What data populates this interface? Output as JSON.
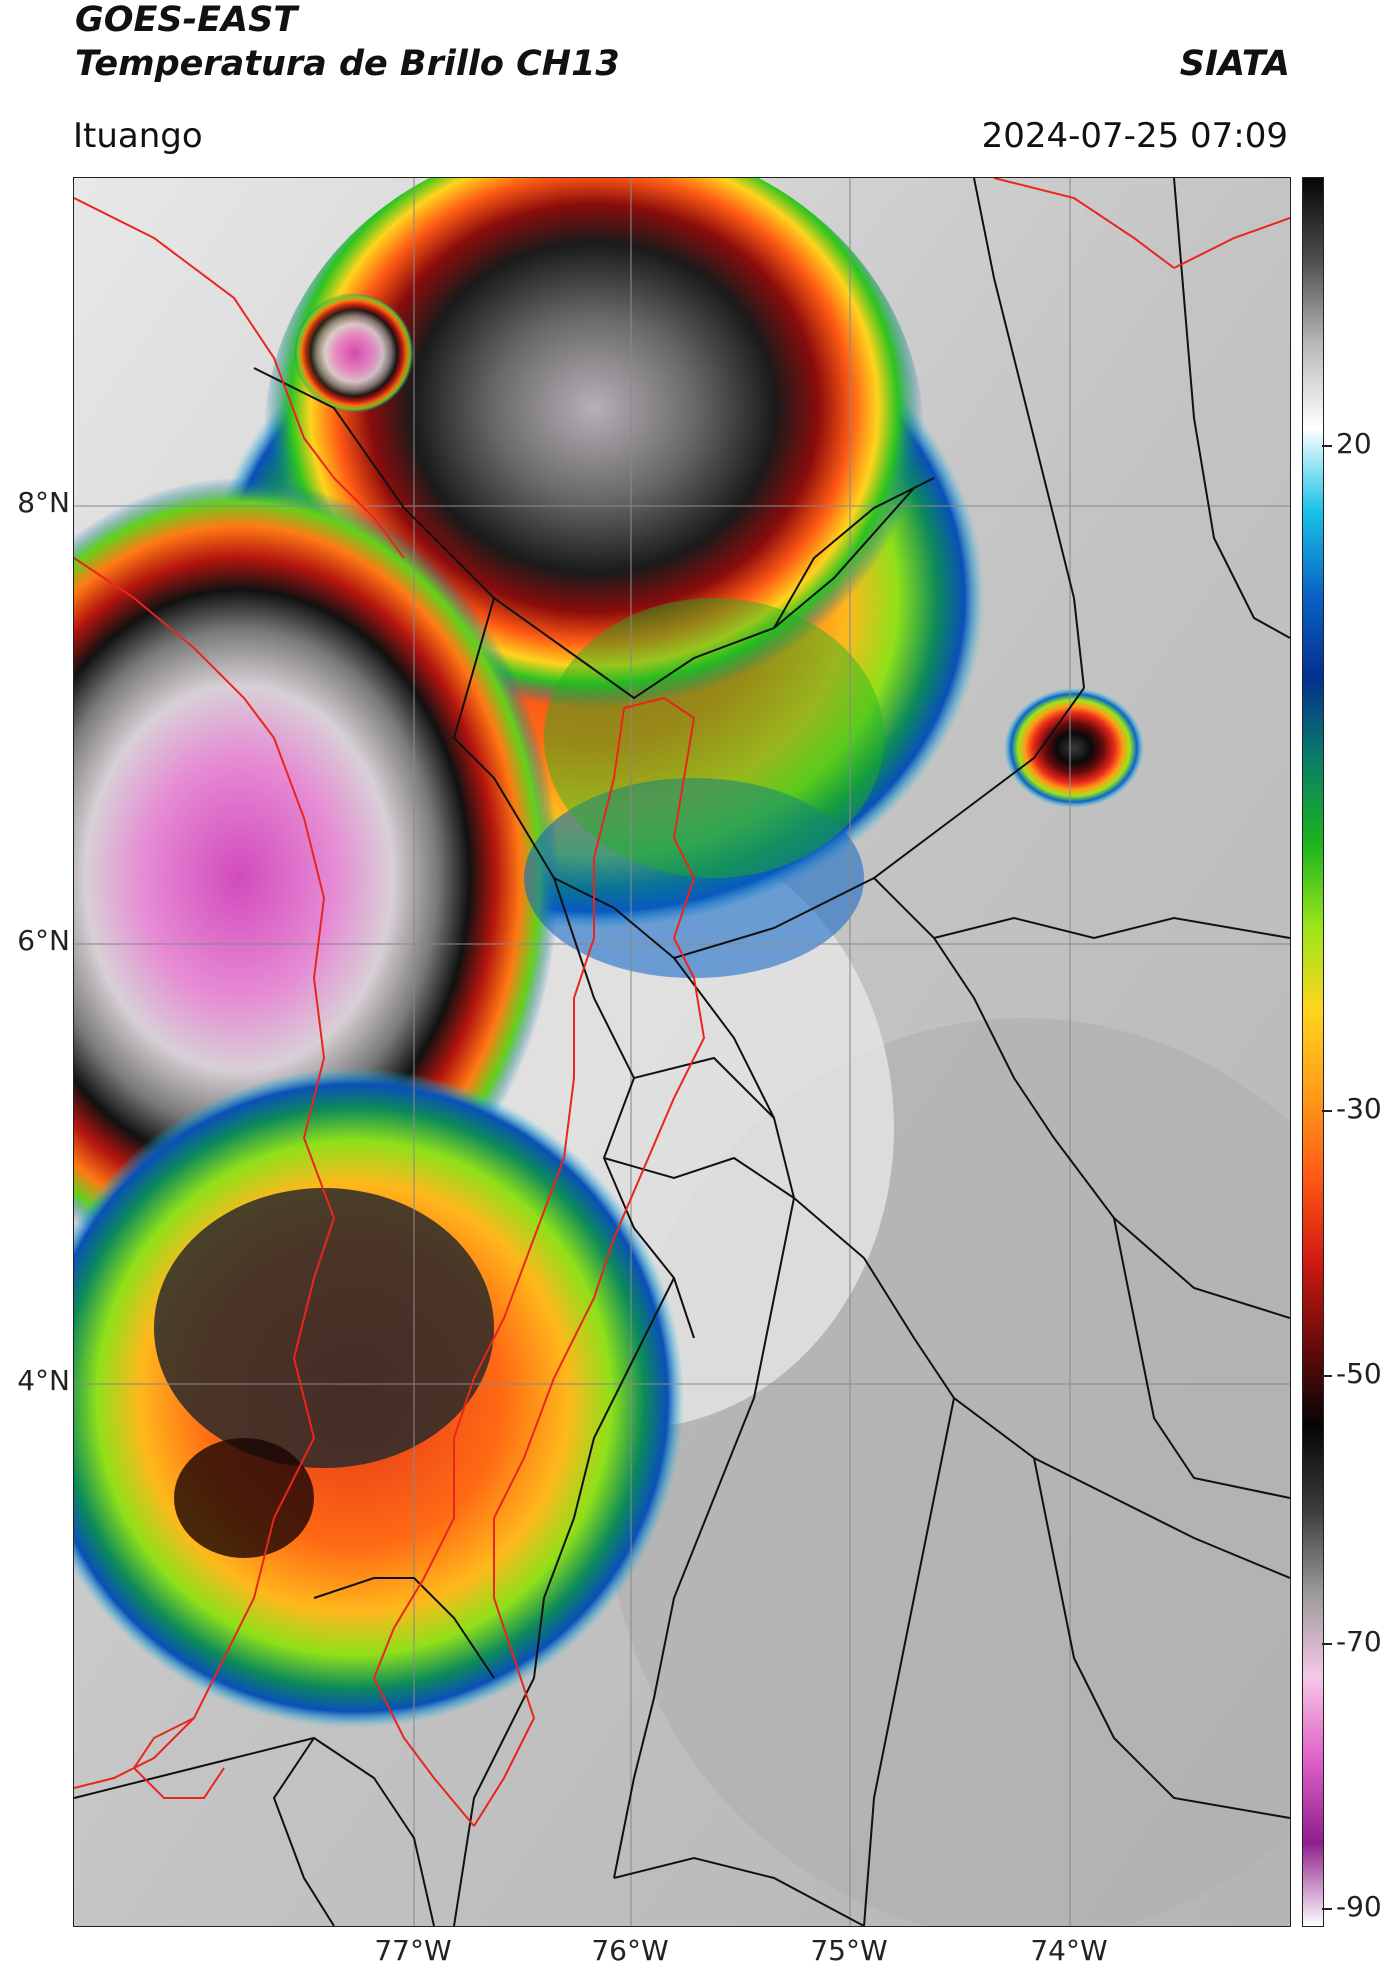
{
  "header": {
    "satellite": "GOES-EAST",
    "product": "Temperatura de Brillo CH13",
    "organization": "SIATA",
    "region": "Ituango",
    "timestamp": "2024-07-25 07:09"
  },
  "axes": {
    "lat_labels": [
      "8°N",
      "6°N",
      "4°N"
    ],
    "lon_labels": [
      "77°W",
      "76°W",
      "75°W",
      "74°W"
    ]
  },
  "colorbar": {
    "labels": [
      "20",
      "-30",
      "-50",
      "-70",
      "-90"
    ],
    "stops": [
      "#ffffff",
      "#8e1f8c",
      "#e060c8",
      "#f6c7e6",
      "#9a9a9a",
      "#3c3c3c",
      "#050505",
      "#6a0b0b",
      "#d11a12",
      "#ff5a14",
      "#ff9c18",
      "#ffd41e",
      "#9be61a",
      "#1cb41f",
      "#0a7f66",
      "#04308f",
      "#0a63c7",
      "#19c3e6",
      "#ffffff",
      "#b9b9b9",
      "#505050",
      "#050505"
    ]
  },
  "legend_colors": {
    "border_red": "#e8261c",
    "border_black": "#111111",
    "grid": "#8a8a8a"
  }
}
